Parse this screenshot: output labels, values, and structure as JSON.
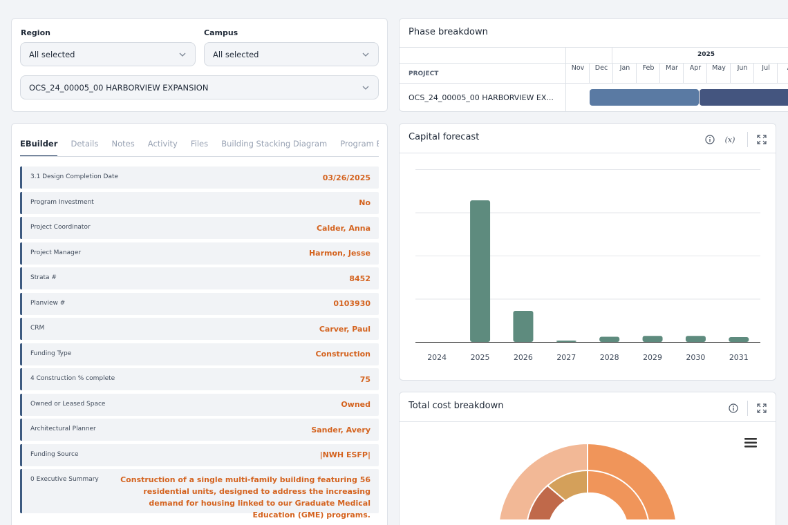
{
  "filters": {
    "region_label": "Region",
    "region_value": "All selected",
    "campus_label": "Campus",
    "campus_value": "All selected",
    "project_value": "OCS_24_00005_00 HARBORVIEW EXPANSION"
  },
  "tabs": [
    "EBuilder",
    "Details",
    "Notes",
    "Activity",
    "Files",
    "Building Stacking Diagram",
    "Program Buil"
  ],
  "fields": [
    {
      "label": "3.1 Design Completion Date",
      "value": "03/26/2025"
    },
    {
      "label": "Program Investment",
      "value": "No"
    },
    {
      "label": "Project Coordinator",
      "value": "Calder, Anna"
    },
    {
      "label": "Project Manager",
      "value": "Harmon, Jesse"
    },
    {
      "label": "Strata #",
      "value": "8452"
    },
    {
      "label": "Planview #",
      "value": "0103930"
    },
    {
      "label": "CRM",
      "value": "Carver, Paul"
    },
    {
      "label": "Funding Type",
      "value": "Construction"
    },
    {
      "label": "4 Construction % complete",
      "value": "75"
    },
    {
      "label": "Owned or Leased Space",
      "value": "Owned"
    },
    {
      "label": "Architectural Planner",
      "value": "Sander, Avery"
    },
    {
      "label": "Funding Source",
      "value": "|NWH ESFP|"
    },
    {
      "label": "0 Executive Summary",
      "value": "Construction of a single multi-family building featuring 56 residential units, designed to address the increasing demand for housing linked to our Graduate Medical Education (GME) programs."
    }
  ],
  "phase": {
    "title": "Phase breakdown",
    "year": "2025",
    "project_header": "PROJECT",
    "project_name": "OCS_24_00005_00 HARBORVIEW EX...",
    "months": [
      "Nov",
      "Dec",
      "Jan",
      "Feb",
      "Mar",
      "Apr",
      "May",
      "Jun",
      "Jul",
      "A"
    ],
    "bar_colors": [
      "#5a7aa3",
      "#44557f"
    ]
  },
  "forecast": {
    "title": "Capital forecast",
    "icons": [
      "info-icon",
      "function-icon",
      "expand-icon"
    ],
    "function_glyph": "(x)",
    "bar_color": "#5e8b7e"
  },
  "chart_data": {
    "type": "bar",
    "categories": [
      "2024",
      "2025",
      "2026",
      "2027",
      "2028",
      "2029",
      "2030",
      "2031"
    ],
    "values": [
      0,
      8.2,
      1.8,
      0.05,
      0.3,
      0.35,
      0.35,
      0.28
    ],
    "title": "Capital forecast",
    "xlabel": "",
    "ylabel": "",
    "ylim": [
      0,
      10
    ],
    "grid": true
  },
  "cost": {
    "title": "Total cost breakdown",
    "icons": [
      "info-icon",
      "expand-icon",
      "menu-icon"
    ],
    "colors": [
      "#f0955a",
      "#f2b896",
      "#d4a05a",
      "#c0694a"
    ]
  }
}
